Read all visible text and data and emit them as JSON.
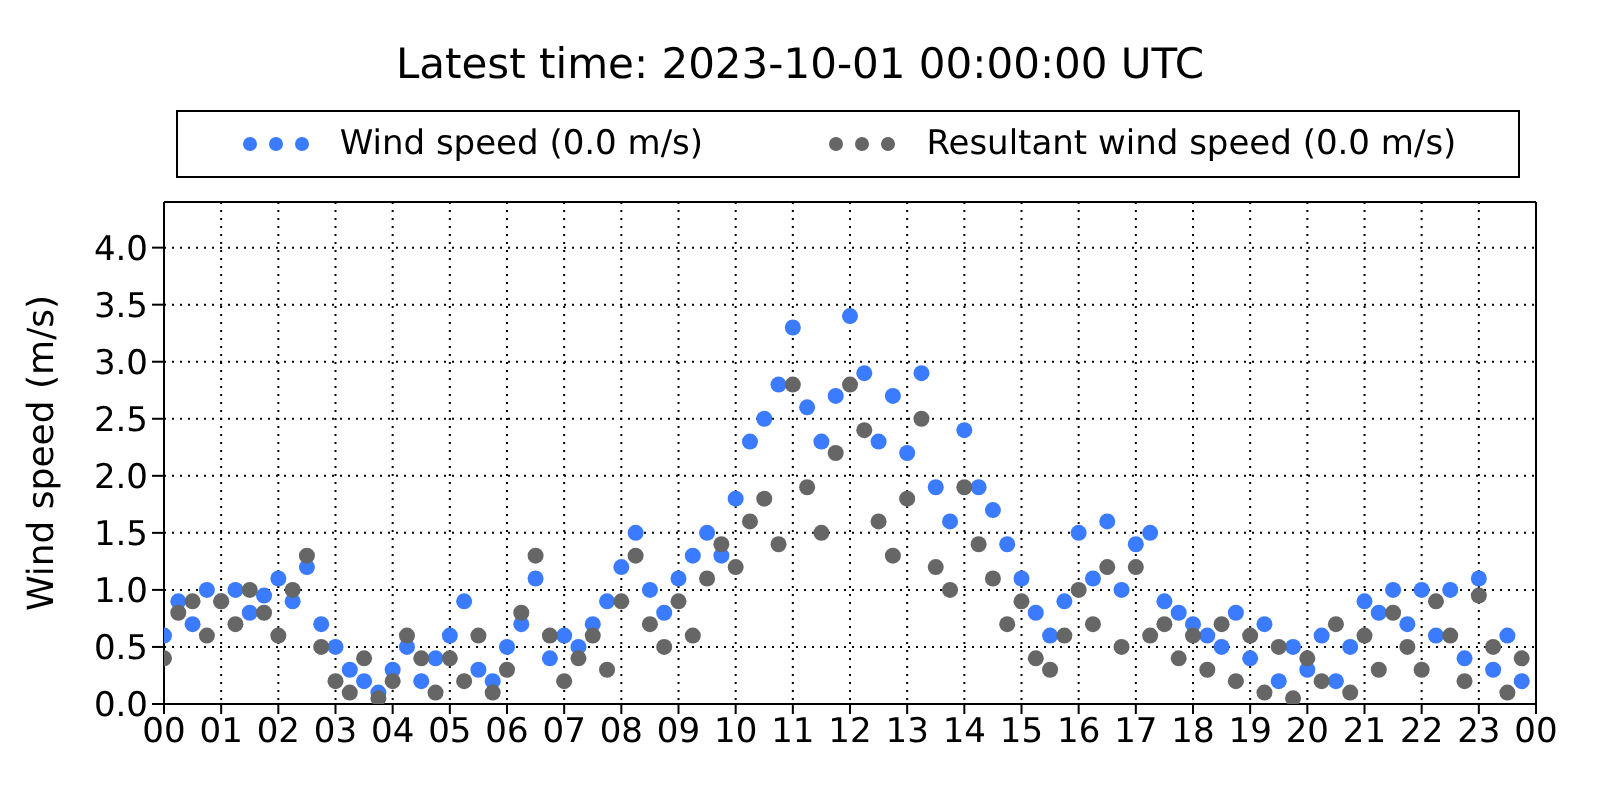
{
  "chart_data": {
    "type": "scatter",
    "title": "Latest time: 2023-10-01 00:00:00 UTC",
    "ylabel": "Wind speed (m/s)",
    "xlim": [
      0,
      24
    ],
    "xticks": [
      {
        "value": 0,
        "label": "00"
      },
      {
        "value": 1,
        "label": "01"
      },
      {
        "value": 2,
        "label": "02"
      },
      {
        "value": 3,
        "label": "03"
      },
      {
        "value": 4,
        "label": "04"
      },
      {
        "value": 5,
        "label": "05"
      },
      {
        "value": 6,
        "label": "06"
      },
      {
        "value": 7,
        "label": "07"
      },
      {
        "value": 8,
        "label": "08"
      },
      {
        "value": 9,
        "label": "09"
      },
      {
        "value": 10,
        "label": "10"
      },
      {
        "value": 11,
        "label": "11"
      },
      {
        "value": 12,
        "label": "12"
      },
      {
        "value": 13,
        "label": "13"
      },
      {
        "value": 14,
        "label": "14"
      },
      {
        "value": 15,
        "label": "15"
      },
      {
        "value": 16,
        "label": "16"
      },
      {
        "value": 17,
        "label": "17"
      },
      {
        "value": 18,
        "label": "18"
      },
      {
        "value": 19,
        "label": "19"
      },
      {
        "value": 20,
        "label": "20"
      },
      {
        "value": 21,
        "label": "21"
      },
      {
        "value": 22,
        "label": "22"
      },
      {
        "value": 23,
        "label": "23"
      },
      {
        "value": 24,
        "label": "00"
      }
    ],
    "ylim": [
      0,
      4.4
    ],
    "yticks": [
      {
        "value": 0,
        "label": "0.0"
      },
      {
        "value": 0.5,
        "label": "0.5"
      },
      {
        "value": 1,
        "label": "1.0"
      },
      {
        "value": 1.5,
        "label": "1.5"
      },
      {
        "value": 2,
        "label": "2.0"
      },
      {
        "value": 2.5,
        "label": "2.5"
      },
      {
        "value": 3,
        "label": "3.0"
      },
      {
        "value": 3.5,
        "label": "3.5"
      },
      {
        "value": 4,
        "label": "4.0"
      }
    ],
    "grid": true,
    "legend": "top",
    "marker": "circle",
    "series": [
      {
        "name": "Wind speed (0.0 m/s)",
        "color": "#3a7bff",
        "x": [
          0,
          0.25,
          0.5,
          0.75,
          1,
          1.25,
          1.5,
          1.75,
          2,
          2.25,
          2.5,
          2.75,
          3,
          3.25,
          3.5,
          3.75,
          4,
          4.25,
          4.5,
          4.75,
          5,
          5.25,
          5.5,
          5.75,
          6,
          6.25,
          6.5,
          6.75,
          7,
          7.25,
          7.5,
          7.75,
          8,
          8.25,
          8.5,
          8.75,
          9,
          9.25,
          9.5,
          9.75,
          10,
          10.25,
          10.5,
          10.75,
          11,
          11.25,
          11.5,
          11.75,
          12,
          12.25,
          12.5,
          12.75,
          13,
          13.25,
          13.5,
          13.75,
          14,
          14.25,
          14.5,
          14.75,
          15,
          15.25,
          15.5,
          15.75,
          16,
          16.25,
          16.5,
          16.75,
          17,
          17.25,
          17.5,
          17.75,
          18,
          18.25,
          18.5,
          18.75,
          19,
          19.25,
          19.5,
          19.75,
          20,
          20.25,
          20.5,
          20.75,
          21,
          21.25,
          21.5,
          21.75,
          22,
          22.25,
          22.5,
          22.75,
          23,
          23.25,
          23.5,
          23.75
        ],
        "values": [
          0.6,
          0.9,
          0.7,
          1.0,
          0.9,
          1.0,
          0.8,
          0.95,
          1.1,
          0.9,
          1.2,
          0.7,
          0.5,
          0.3,
          0.2,
          0.1,
          0.3,
          0.5,
          0.2,
          0.4,
          0.6,
          0.9,
          0.3,
          0.2,
          0.5,
          0.7,
          1.1,
          0.4,
          0.6,
          0.5,
          0.7,
          0.9,
          1.2,
          1.5,
          1.0,
          0.8,
          1.1,
          1.3,
          1.5,
          1.3,
          1.8,
          2.3,
          2.5,
          2.8,
          3.3,
          2.6,
          2.3,
          2.7,
          3.4,
          2.9,
          2.3,
          2.7,
          2.2,
          2.9,
          1.9,
          1.6,
          2.4,
          1.9,
          1.7,
          1.4,
          1.1,
          0.8,
          0.6,
          0.9,
          1.5,
          1.1,
          1.6,
          1.0,
          1.4,
          1.5,
          0.9,
          0.8,
          0.7,
          0.6,
          0.5,
          0.8,
          0.4,
          0.7,
          0.2,
          0.5,
          0.3,
          0.6,
          0.2,
          0.5,
          0.9,
          0.8,
          1.0,
          0.7,
          1.0,
          0.6,
          1.0,
          0.4,
          1.1,
          0.3,
          0.6,
          0.2
        ]
      },
      {
        "name": "Resultant wind speed (0.0 m/s)",
        "color": "#666666",
        "x": [
          0,
          0.25,
          0.5,
          0.75,
          1,
          1.25,
          1.5,
          1.75,
          2,
          2.25,
          2.5,
          2.75,
          3,
          3.25,
          3.5,
          3.75,
          4,
          4.25,
          4.5,
          4.75,
          5,
          5.25,
          5.5,
          5.75,
          6,
          6.25,
          6.5,
          6.75,
          7,
          7.25,
          7.5,
          7.75,
          8,
          8.25,
          8.5,
          8.75,
          9,
          9.25,
          9.5,
          9.75,
          10,
          10.25,
          10.5,
          10.75,
          11,
          11.25,
          11.5,
          11.75,
          12,
          12.25,
          12.5,
          12.75,
          13,
          13.25,
          13.5,
          13.75,
          14,
          14.25,
          14.5,
          14.75,
          15,
          15.25,
          15.5,
          15.75,
          16,
          16.25,
          16.5,
          16.75,
          17,
          17.25,
          17.5,
          17.75,
          18,
          18.25,
          18.5,
          18.75,
          19,
          19.25,
          19.5,
          19.75,
          20,
          20.25,
          20.5,
          20.75,
          21,
          21.25,
          21.5,
          21.75,
          22,
          22.25,
          22.5,
          22.75,
          23,
          23.25,
          23.5,
          23.75
        ],
        "values": [
          0.4,
          0.8,
          0.9,
          0.6,
          0.9,
          0.7,
          1.0,
          0.8,
          0.6,
          1.0,
          1.3,
          0.5,
          0.2,
          0.1,
          0.4,
          0.05,
          0.2,
          0.6,
          0.4,
          0.1,
          0.4,
          0.2,
          0.6,
          0.1,
          0.3,
          0.8,
          1.3,
          0.6,
          0.2,
          0.4,
          0.6,
          0.3,
          0.9,
          1.3,
          0.7,
          0.5,
          0.9,
          0.6,
          1.1,
          1.4,
          1.2,
          1.6,
          1.8,
          1.4,
          2.8,
          1.9,
          1.5,
          2.2,
          2.8,
          2.4,
          1.6,
          1.3,
          1.8,
          2.5,
          1.2,
          1.0,
          1.9,
          1.4,
          1.1,
          0.7,
          0.9,
          0.4,
          0.3,
          0.6,
          1.0,
          0.7,
          1.2,
          0.5,
          1.2,
          0.6,
          0.7,
          0.4,
          0.6,
          0.3,
          0.7,
          0.2,
          0.6,
          0.1,
          0.5,
          0.05,
          0.4,
          0.2,
          0.7,
          0.1,
          0.6,
          0.3,
          0.8,
          0.5,
          0.3,
          0.9,
          0.6,
          0.2,
          0.95,
          0.5,
          0.1,
          0.4
        ]
      }
    ]
  }
}
